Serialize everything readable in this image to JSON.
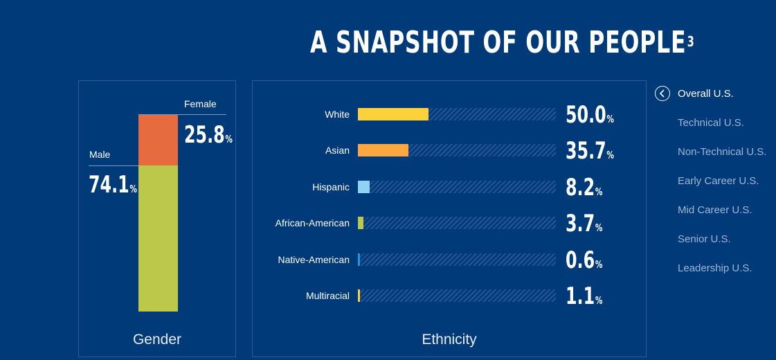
{
  "title": "A SNAPSHOT OF OUR PEOPLE",
  "title_superscript": "3",
  "chart_data": [
    {
      "type": "bar",
      "stacked": true,
      "label": "Gender",
      "categories": [
        "Male",
        "Female"
      ],
      "values": [
        74.1,
        25.8
      ],
      "value_labels": [
        "74.1",
        "25.8"
      ],
      "unit": "%",
      "colors": [
        "#bcc84a",
        "#e66b3f"
      ]
    },
    {
      "type": "bar",
      "orientation": "horizontal",
      "label": "Ethnicity",
      "categories": [
        "White",
        "Asian",
        "Hispanic",
        "African-American",
        "Native-American",
        "Multiracial"
      ],
      "values": [
        50.0,
        35.7,
        8.2,
        3.7,
        0.6,
        1.1
      ],
      "value_labels": [
        "50.0",
        "35.7",
        "8.2",
        "3.7",
        "0.6",
        "1.1"
      ],
      "unit": "%",
      "colors": [
        "#fdd13c",
        "#fca73f",
        "#8fd2f4",
        "#bcc84a",
        "#1f9ad8",
        "#fdd13c"
      ],
      "xlim": [
        0,
        140
      ]
    }
  ],
  "nav": {
    "items": [
      {
        "label": "Overall U.S.",
        "active": true
      },
      {
        "label": "Technical U.S.",
        "active": false
      },
      {
        "label": "Non-Technical U.S.",
        "active": false
      },
      {
        "label": "Early Career U.S.",
        "active": false
      },
      {
        "label": "Mid Career U.S.",
        "active": false
      },
      {
        "label": "Senior U.S.",
        "active": false
      },
      {
        "label": "Leadership U.S.",
        "active": false
      }
    ],
    "back_icon": "chevron-left-circle-icon"
  },
  "colors": {
    "background": "#003a78",
    "panel_border": "#2d5a96",
    "nav_inactive": "#9fb6d6"
  }
}
